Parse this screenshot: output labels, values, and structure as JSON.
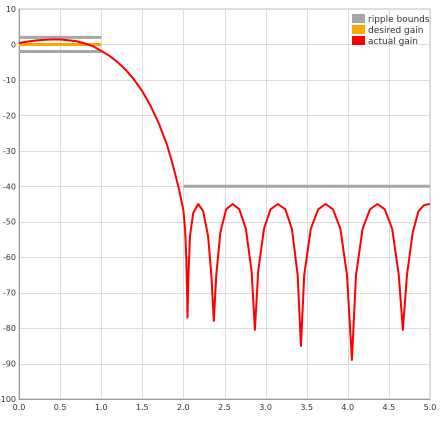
{
  "chart_data": {
    "type": "line",
    "xlim": [
      0.0,
      5.0
    ],
    "ylim": [
      -100,
      10
    ],
    "x_ticks": [
      0.0,
      0.5,
      1.0,
      1.5,
      2.0,
      2.5,
      3.0,
      3.5,
      4.0,
      4.5,
      5.0
    ],
    "x_tick_labels": [
      "0.0",
      "0.5",
      "1.0",
      "1.5",
      "2.0",
      "2.5",
      "3.0",
      "3.5",
      "4.0",
      "4.5",
      "5.0"
    ],
    "y_ticks": [
      10,
      0,
      -10,
      -20,
      -30,
      -40,
      -50,
      -60,
      -70,
      -80,
      -90,
      -100
    ],
    "y_tick_labels": [
      "10",
      "0",
      "-10",
      "-20",
      "-30",
      "-40",
      "-50",
      "-60",
      "-70",
      "-80",
      "-90",
      "-100"
    ],
    "grid": true,
    "legend_position": "top-right",
    "legend": [
      {
        "label": "ripple bounds",
        "color": "#a6a6a6"
      },
      {
        "label": "desired gain",
        "color": "#ffa500"
      },
      {
        "label": "actual gain",
        "color": "#ff0000"
      }
    ],
    "series": [
      {
        "name": "ripple bounds",
        "color": "#a6a6a6",
        "segments": [
          {
            "x": [
              0.0,
              1.0
            ],
            "y": [
              2,
              2
            ]
          },
          {
            "x": [
              0.0,
              1.0
            ],
            "y": [
              -2,
              -2
            ]
          },
          {
            "x": [
              2.0,
              5.0
            ],
            "y": [
              -40,
              -40
            ]
          }
        ]
      },
      {
        "name": "desired gain",
        "color": "#ffa500",
        "segments": [
          {
            "x": [
              0.0,
              1.0
            ],
            "y": [
              0,
              0
            ]
          }
        ]
      },
      {
        "name": "actual gain",
        "color": "#ff0000",
        "points": [
          [
            0.0,
            0.4
          ],
          [
            0.1,
            0.8
          ],
          [
            0.2,
            1.1
          ],
          [
            0.3,
            1.3
          ],
          [
            0.4,
            1.4
          ],
          [
            0.5,
            1.4
          ],
          [
            0.6,
            1.2
          ],
          [
            0.7,
            0.9
          ],
          [
            0.8,
            0.3
          ],
          [
            0.9,
            -0.5
          ],
          [
            1.0,
            -1.8
          ],
          [
            1.1,
            -3.2
          ],
          [
            1.2,
            -5.0
          ],
          [
            1.3,
            -7.2
          ],
          [
            1.4,
            -9.9
          ],
          [
            1.5,
            -13.2
          ],
          [
            1.6,
            -17.3
          ],
          [
            1.7,
            -22.2
          ],
          [
            1.8,
            -28.3
          ],
          [
            1.85,
            -32.2
          ],
          [
            1.9,
            -36.5
          ],
          [
            1.95,
            -41.2
          ],
          [
            2.0,
            -46.8
          ],
          [
            2.02,
            -52.0
          ],
          [
            2.035,
            -60.0
          ],
          [
            2.045,
            -70.0
          ],
          [
            2.05,
            -77.0
          ],
          [
            2.06,
            -66.0
          ],
          [
            2.08,
            -54.0
          ],
          [
            2.12,
            -47.5
          ],
          [
            2.18,
            -45.0
          ],
          [
            2.24,
            -47.0
          ],
          [
            2.3,
            -54.0
          ],
          [
            2.34,
            -65.0
          ],
          [
            2.37,
            -78.0
          ],
          [
            2.4,
            -65.0
          ],
          [
            2.45,
            -53.0
          ],
          [
            2.52,
            -46.5
          ],
          [
            2.6,
            -45.0
          ],
          [
            2.68,
            -46.5
          ],
          [
            2.76,
            -52.0
          ],
          [
            2.83,
            -64.0
          ],
          [
            2.87,
            -80.5
          ],
          [
            2.91,
            -64.0
          ],
          [
            2.98,
            -52.0
          ],
          [
            3.06,
            -46.5
          ],
          [
            3.15,
            -45.0
          ],
          [
            3.24,
            -46.5
          ],
          [
            3.32,
            -52.0
          ],
          [
            3.39,
            -65.0
          ],
          [
            3.43,
            -85.0
          ],
          [
            3.47,
            -65.0
          ],
          [
            3.55,
            -52.0
          ],
          [
            3.64,
            -46.5
          ],
          [
            3.73,
            -45.0
          ],
          [
            3.82,
            -46.5
          ],
          [
            3.91,
            -52.0
          ],
          [
            3.99,
            -65.0
          ],
          [
            4.05,
            -89.0
          ],
          [
            4.1,
            -65.0
          ],
          [
            4.18,
            -52.0
          ],
          [
            4.27,
            -46.5
          ],
          [
            4.36,
            -45.0
          ],
          [
            4.45,
            -46.5
          ],
          [
            4.54,
            -52.0
          ],
          [
            4.62,
            -65.0
          ],
          [
            4.67,
            -80.5
          ],
          [
            4.72,
            -65.0
          ],
          [
            4.79,
            -53.0
          ],
          [
            4.86,
            -47.0
          ],
          [
            4.93,
            -45.3
          ],
          [
            5.0,
            -45.0
          ]
        ]
      }
    ]
  }
}
